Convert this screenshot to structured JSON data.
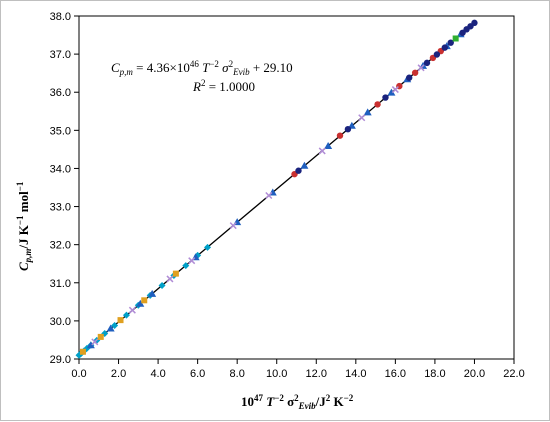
{
  "chart_data": {
    "type": "scatter",
    "title": "",
    "xlabel_parts": {
      "a": "10",
      "a_sup": "47",
      "b": " T",
      "b_sup": "−2",
      "c": " σ",
      "c_sup": "2",
      "c_sub": "Evib",
      "d": "/J",
      "d_sup": "2",
      "e": " K",
      "e_sup": "−2"
    },
    "ylabel_parts": {
      "a": "C",
      "a_sub": "p,m",
      "b": "/J K",
      "b_sup": "−1",
      "c": " mol",
      "c_sup": "−1"
    },
    "xlim": [
      0.0,
      22.0
    ],
    "ylim": [
      29.0,
      38.0
    ],
    "x_ticks": [
      "0.0",
      "2.0",
      "4.0",
      "6.0",
      "8.0",
      "10.0",
      "12.0",
      "14.0",
      "16.0",
      "18.0",
      "20.0",
      "22.0"
    ],
    "y_ticks": [
      "29.0",
      "30.0",
      "31.0",
      "32.0",
      "33.0",
      "34.0",
      "35.0",
      "36.0",
      "37.0",
      "38.0"
    ],
    "grid": false,
    "fit_line": {
      "slope": 0.436,
      "intercept": 29.1,
      "x_range": [
        0.0,
        20.1
      ]
    },
    "annotation": {
      "eq_lhs": "C",
      "eq_lhs_sub": "p,m",
      "eq_mid": " = 4.36×10",
      "eq_exp": "46",
      "eq_T": " T",
      "eq_T_sup": "−2",
      "eq_sigma": " σ",
      "eq_sigma_sup": "2",
      "eq_sigma_sub": "Evib",
      "eq_tail": " + 29.10",
      "r2_lhs": "R",
      "r2_sup": "2",
      "r2_rhs": " = 1.0000"
    },
    "series": [
      {
        "color": "#00a0c8",
        "marker": "diamond",
        "x": [
          0.0,
          0.05,
          0.1,
          0.15,
          0.25,
          0.4,
          0.6,
          0.9,
          1.3,
          1.8,
          2.4,
          3.0,
          3.6,
          4.2,
          4.8,
          5.4,
          6.0,
          6.5
        ],
        "y": [
          29.1,
          29.12,
          29.14,
          29.17,
          29.21,
          29.28,
          29.36,
          29.49,
          29.67,
          29.88,
          30.15,
          30.41,
          30.67,
          30.93,
          31.19,
          31.45,
          31.72,
          31.93
        ]
      },
      {
        "color": "#1f5fbf",
        "marker": "triangle",
        "x": [
          0.6,
          1.6,
          3.1,
          3.7,
          5.9,
          8.0,
          9.8,
          11.4,
          12.6,
          13.8,
          14.6,
          15.8,
          16.6,
          17.4,
          18.6,
          19.3
        ],
        "y": [
          29.36,
          29.8,
          30.45,
          30.71,
          31.67,
          32.59,
          33.37,
          34.07,
          34.59,
          35.12,
          35.47,
          35.99,
          36.34,
          36.69,
          37.21,
          37.52
        ]
      },
      {
        "color": "#c93030",
        "marker": "circle",
        "x": [
          10.9,
          13.2,
          15.1,
          16.2,
          17.0,
          17.9,
          18.3
        ],
        "y": [
          33.85,
          34.86,
          35.68,
          36.16,
          36.51,
          36.9,
          37.08
        ]
      },
      {
        "color": "#1a237e",
        "marker": "circle",
        "x": [
          11.1,
          13.6,
          15.5,
          16.7,
          17.6,
          18.1,
          18.5,
          18.8,
          19.4,
          19.6,
          19.8,
          20.0
        ],
        "y": [
          33.94,
          35.03,
          35.86,
          36.38,
          36.77,
          36.99,
          37.17,
          37.3,
          37.56,
          37.65,
          37.73,
          37.82
        ]
      },
      {
        "color": "#b08cd6",
        "marker": "cross",
        "x": [
          0.8,
          2.7,
          4.6,
          5.7,
          7.8,
          9.6,
          12.3,
          14.3,
          16.0,
          17.3
        ],
        "y": [
          29.45,
          30.28,
          31.1,
          31.58,
          32.5,
          33.29,
          34.46,
          35.33,
          36.07,
          36.64
        ]
      },
      {
        "color": "#e0a020",
        "marker": "square",
        "x": [
          0.2,
          1.1,
          2.1,
          3.3,
          4.9
        ],
        "y": [
          29.19,
          29.58,
          30.02,
          30.54,
          31.24
        ]
      },
      {
        "color": "#30b030",
        "marker": "square",
        "x": [
          19.05
        ],
        "y": [
          37.41
        ]
      }
    ]
  }
}
